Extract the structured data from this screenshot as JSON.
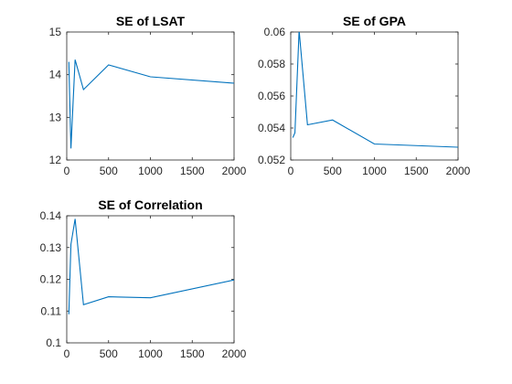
{
  "chart_data": [
    {
      "type": "line",
      "title": "SE of LSAT",
      "xlabel": "",
      "ylabel": "",
      "xlim": [
        0,
        2000
      ],
      "ylim": [
        12,
        15
      ],
      "xticks": [
        0,
        500,
        1000,
        1500,
        2000
      ],
      "yticks": [
        12,
        13,
        14,
        15
      ],
      "ytick_labels": [
        "12",
        "13",
        "14",
        "15"
      ],
      "grid": false,
      "color": "#0072BD",
      "x": [
        25,
        50,
        100,
        200,
        500,
        1000,
        2000
      ],
      "y": [
        14.3,
        12.27,
        14.35,
        13.65,
        14.23,
        13.95,
        13.8
      ]
    },
    {
      "type": "line",
      "title": "SE of GPA",
      "xlabel": "",
      "ylabel": "",
      "xlim": [
        0,
        2000
      ],
      "ylim": [
        0.052,
        0.06
      ],
      "xticks": [
        0,
        500,
        1000,
        1500,
        2000
      ],
      "yticks": [
        0.052,
        0.054,
        0.056,
        0.058,
        0.06
      ],
      "ytick_labels": [
        "0.052",
        "0.054",
        "0.056",
        "0.058",
        "0.06"
      ],
      "grid": false,
      "color": "#0072BD",
      "x": [
        25,
        50,
        100,
        200,
        500,
        1000,
        2000
      ],
      "y": [
        0.0534,
        0.0537,
        0.0601,
        0.0542,
        0.0545,
        0.053,
        0.0528
      ]
    },
    {
      "type": "line",
      "title": "SE of Correlation",
      "xlabel": "",
      "ylabel": "",
      "xlim": [
        0,
        2000
      ],
      "ylim": [
        0.1,
        0.14
      ],
      "xticks": [
        0,
        500,
        1000,
        1500,
        2000
      ],
      "yticks": [
        0.1,
        0.11,
        0.12,
        0.13,
        0.14
      ],
      "ytick_labels": [
        "0.1",
        "0.11",
        "0.12",
        "0.13",
        "0.14"
      ],
      "grid": false,
      "color": "#0072BD",
      "x": [
        25,
        50,
        100,
        200,
        500,
        1000,
        2000
      ],
      "y": [
        0.109,
        0.131,
        0.139,
        0.112,
        0.1145,
        0.1142,
        0.1198
      ]
    }
  ]
}
